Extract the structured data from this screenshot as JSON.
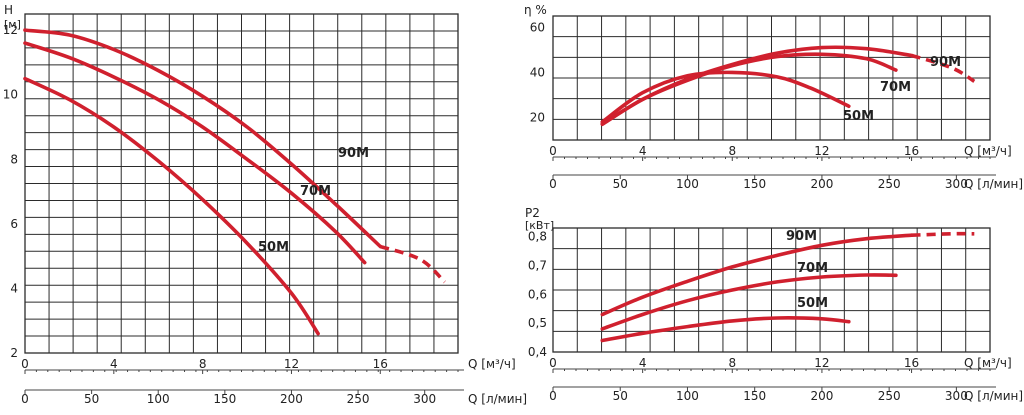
{
  "chart_data": [
    {
      "id": "head",
      "type": "line",
      "ylabel": "H",
      "yunit": "[м]",
      "xlim": [
        0,
        19.5
      ],
      "ylim": [
        2,
        12.5
      ],
      "x_ticks": [
        0,
        4,
        8,
        12,
        16
      ],
      "y_ticks": [
        2,
        4,
        6,
        8,
        10,
        12
      ],
      "x_axis_label": "Q [м³/ч]",
      "x2_ticks": [
        0,
        50,
        100,
        150,
        200,
        250,
        300
      ],
      "x2_axis_label": "Q [л/мин]",
      "series": [
        {
          "name": "90M",
          "x": [
            0,
            2,
            4,
            6,
            8,
            10,
            12,
            14,
            16,
            17.8,
            18.9
          ],
          "y": [
            12.0,
            11.85,
            11.4,
            10.75,
            9.95,
            9.0,
            7.85,
            6.6,
            5.3,
            4.9,
            4.2
          ],
          "dashed_from": 17.8
        },
        {
          "name": "70M",
          "x": [
            0,
            2,
            4,
            6,
            8,
            10,
            12,
            14,
            15.3
          ],
          "y": [
            11.6,
            11.15,
            10.55,
            9.85,
            9.0,
            8.0,
            6.95,
            5.75,
            4.8
          ]
        },
        {
          "name": "50M",
          "x": [
            0,
            2,
            4,
            6,
            8,
            10,
            12,
            13.2
          ],
          "y": [
            10.5,
            9.85,
            9.0,
            7.95,
            6.75,
            5.4,
            3.85,
            2.6
          ]
        }
      ]
    },
    {
      "id": "efficiency",
      "type": "line",
      "ylabel": "η %",
      "xlim": [
        0,
        19.5
      ],
      "ylim": [
        10,
        65
      ],
      "x_ticks": [
        0,
        4,
        8,
        12,
        16
      ],
      "y_ticks": [
        20,
        40,
        60
      ],
      "x_axis_label": "Q [м³/ч]",
      "x2_ticks": [
        0,
        50,
        100,
        150,
        200,
        250,
        300
      ],
      "x2_axis_label": "Q [л/мин]",
      "series": [
        {
          "name": "90M",
          "x": [
            2.2,
            4,
            6,
            8,
            10,
            12,
            14,
            16,
            17.8,
            18.8
          ],
          "y": [
            17,
            28,
            37,
            43.5,
            48.5,
            51,
            50.5,
            47.5,
            42,
            36
          ],
          "dashed_from": 17.8
        },
        {
          "name": "70M",
          "x": [
            2.2,
            4,
            6,
            8,
            10,
            12,
            14,
            15.3
          ],
          "y": [
            17,
            28,
            36.5,
            43,
            47,
            48,
            46,
            41
          ]
        },
        {
          "name": "50M",
          "x": [
            2.2,
            4,
            6,
            8,
            10,
            11.5,
            13.2
          ],
          "y": [
            18,
            31,
            38.5,
            40,
            38,
            33,
            25
          ]
        }
      ]
    },
    {
      "id": "power",
      "type": "line",
      "ylabel": "P2",
      "yunit": "[кВт]",
      "xlim": [
        0,
        19.5
      ],
      "ylim": [
        0.4,
        0.83
      ],
      "x_ticks": [
        0,
        4,
        8,
        12,
        16
      ],
      "y_ticks": [
        "0,4",
        "0,5",
        "0,6",
        "0,7",
        "0,8"
      ],
      "x_axis_label": "Q [м³/ч]",
      "x2_ticks": [
        0,
        50,
        100,
        150,
        200,
        250,
        300
      ],
      "x2_axis_label": "Q [л/мин]",
      "series": [
        {
          "name": "90M",
          "x": [
            2.2,
            4,
            6,
            8,
            10,
            12,
            14,
            16,
            17.8,
            18.8
          ],
          "y": [
            0.53,
            0.59,
            0.645,
            0.695,
            0.735,
            0.77,
            0.793,
            0.805,
            0.81,
            0.81
          ],
          "dashed_from": 17.8
        },
        {
          "name": "70M",
          "x": [
            2.2,
            4,
            6,
            8,
            10,
            12,
            14,
            15.3
          ],
          "y": [
            0.48,
            0.53,
            0.578,
            0.615,
            0.643,
            0.66,
            0.667,
            0.666
          ]
        },
        {
          "name": "50M",
          "x": [
            2.2,
            4,
            6,
            8,
            10,
            12,
            13.2
          ],
          "y": [
            0.44,
            0.465,
            0.488,
            0.508,
            0.518,
            0.515,
            0.505
          ]
        }
      ]
    }
  ],
  "colors": {
    "curve": "#d0202e",
    "grid": "#2b2b2b",
    "text": "#222222"
  }
}
